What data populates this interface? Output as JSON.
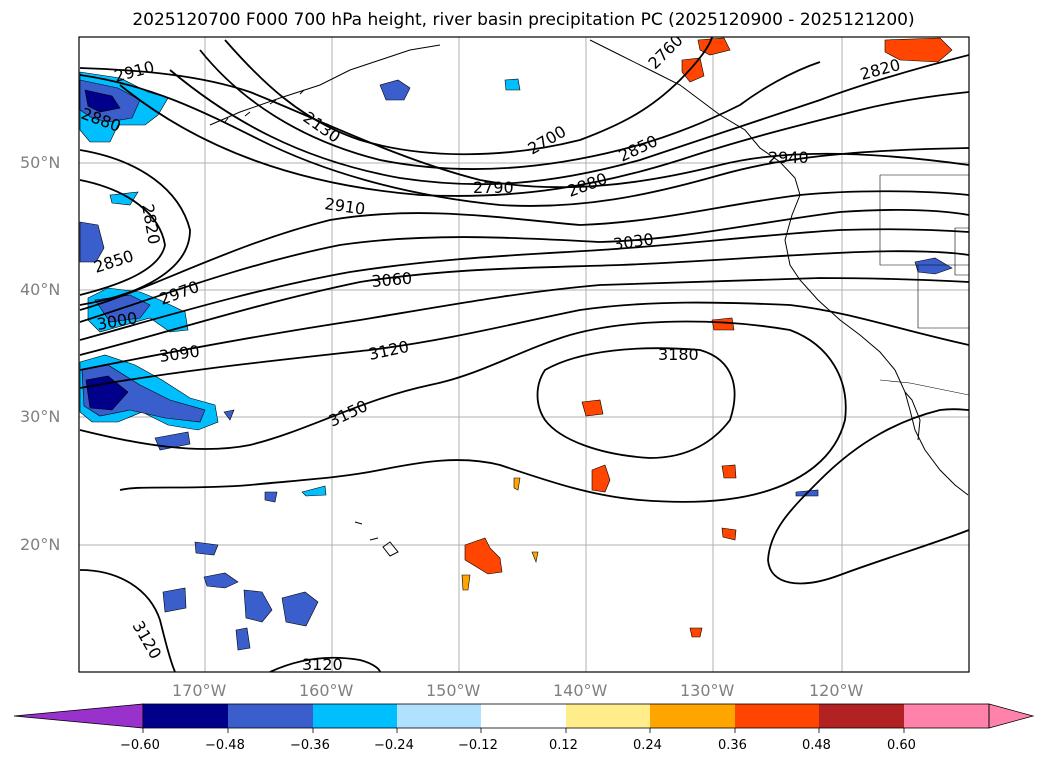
{
  "title": "2025120700 F000 700 hPa height, river basin precipitation PC (2025120900 - 2025121200)",
  "latitude_labels": [
    "50°N",
    "40°N",
    "30°N",
    "20°N"
  ],
  "longitude_labels": [
    "170°W",
    "160°W",
    "150°W",
    "140°W",
    "130°W",
    "120°W"
  ],
  "contour_labels": [
    "2910",
    "2880",
    "2130",
    "2700",
    "2760",
    "2820",
    "2850",
    "2790",
    "2880",
    "2940",
    "2910",
    "2820",
    "2850",
    "3030",
    "3060",
    "2970",
    "3000",
    "3090",
    "3120",
    "3180",
    "3150",
    "3120",
    "3120"
  ],
  "colorbar": {
    "ticks": [
      "−0.60",
      "−0.48",
      "−0.36",
      "−0.24",
      "−0.12",
      "0.12",
      "0.24",
      "0.36",
      "0.48",
      "0.60"
    ],
    "colors": [
      "#9932cc",
      "#00008b",
      "#3a5fcd",
      "#00bfff",
      "#b0e2ff",
      "#ffffff",
      "#ffec8b",
      "#ffa500",
      "#ff4500",
      "#b22222",
      "#ff82ab"
    ]
  },
  "colors": {
    "line": "#000000",
    "grid": "#b0b0b0",
    "axis_text": "#808080"
  }
}
